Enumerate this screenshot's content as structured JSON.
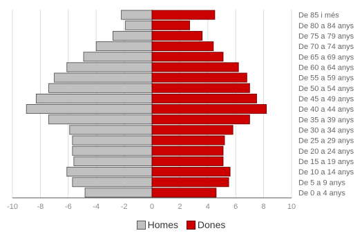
{
  "chart_data": {
    "type": "bar",
    "orientation": "horizontal",
    "categories": [
      "De 85 i més",
      "De 80 a 84 anys",
      "De 75 a 79 anys",
      "De 70 a 74 anys",
      "De 65 a 69 anys",
      "De 60 a 64 anys",
      "De 55 a 59 anys",
      "De 50 a 54 anys",
      "De 45 a 49 anys",
      "De 40 a 44 anys",
      "De 35 a 39 anys",
      "De 30 a 34 anys",
      "De 25 a 29 anys",
      "De 20 a 24 anys",
      "De 15 a 19 anys",
      "De 10 a 14 anys",
      "De 5 a 9 anys",
      "De 0 a 4 anys"
    ],
    "series": [
      {
        "name": "Homes",
        "color": "#c0c0c0",
        "values": [
          -2.2,
          -1.9,
          -2.8,
          -4.0,
          -4.9,
          -6.1,
          -7.0,
          -7.4,
          -8.3,
          -9.0,
          -7.4,
          -5.9,
          -5.7,
          -5.7,
          -5.6,
          -6.1,
          -5.7,
          -4.8
        ]
      },
      {
        "name": "Dones",
        "color": "#cc0000",
        "values": [
          4.5,
          2.7,
          3.6,
          4.4,
          5.1,
          6.2,
          6.8,
          7.0,
          7.5,
          8.2,
          7.0,
          5.8,
          5.2,
          5.1,
          5.1,
          5.6,
          5.5,
          4.6
        ]
      }
    ],
    "xlim": [
      -10,
      10
    ],
    "xticks": [
      "-10",
      "-8",
      "-6",
      "-4",
      "-2",
      "0",
      "2",
      "4",
      "6",
      "8",
      "10"
    ],
    "grid": true,
    "legend_position": "bottom"
  }
}
